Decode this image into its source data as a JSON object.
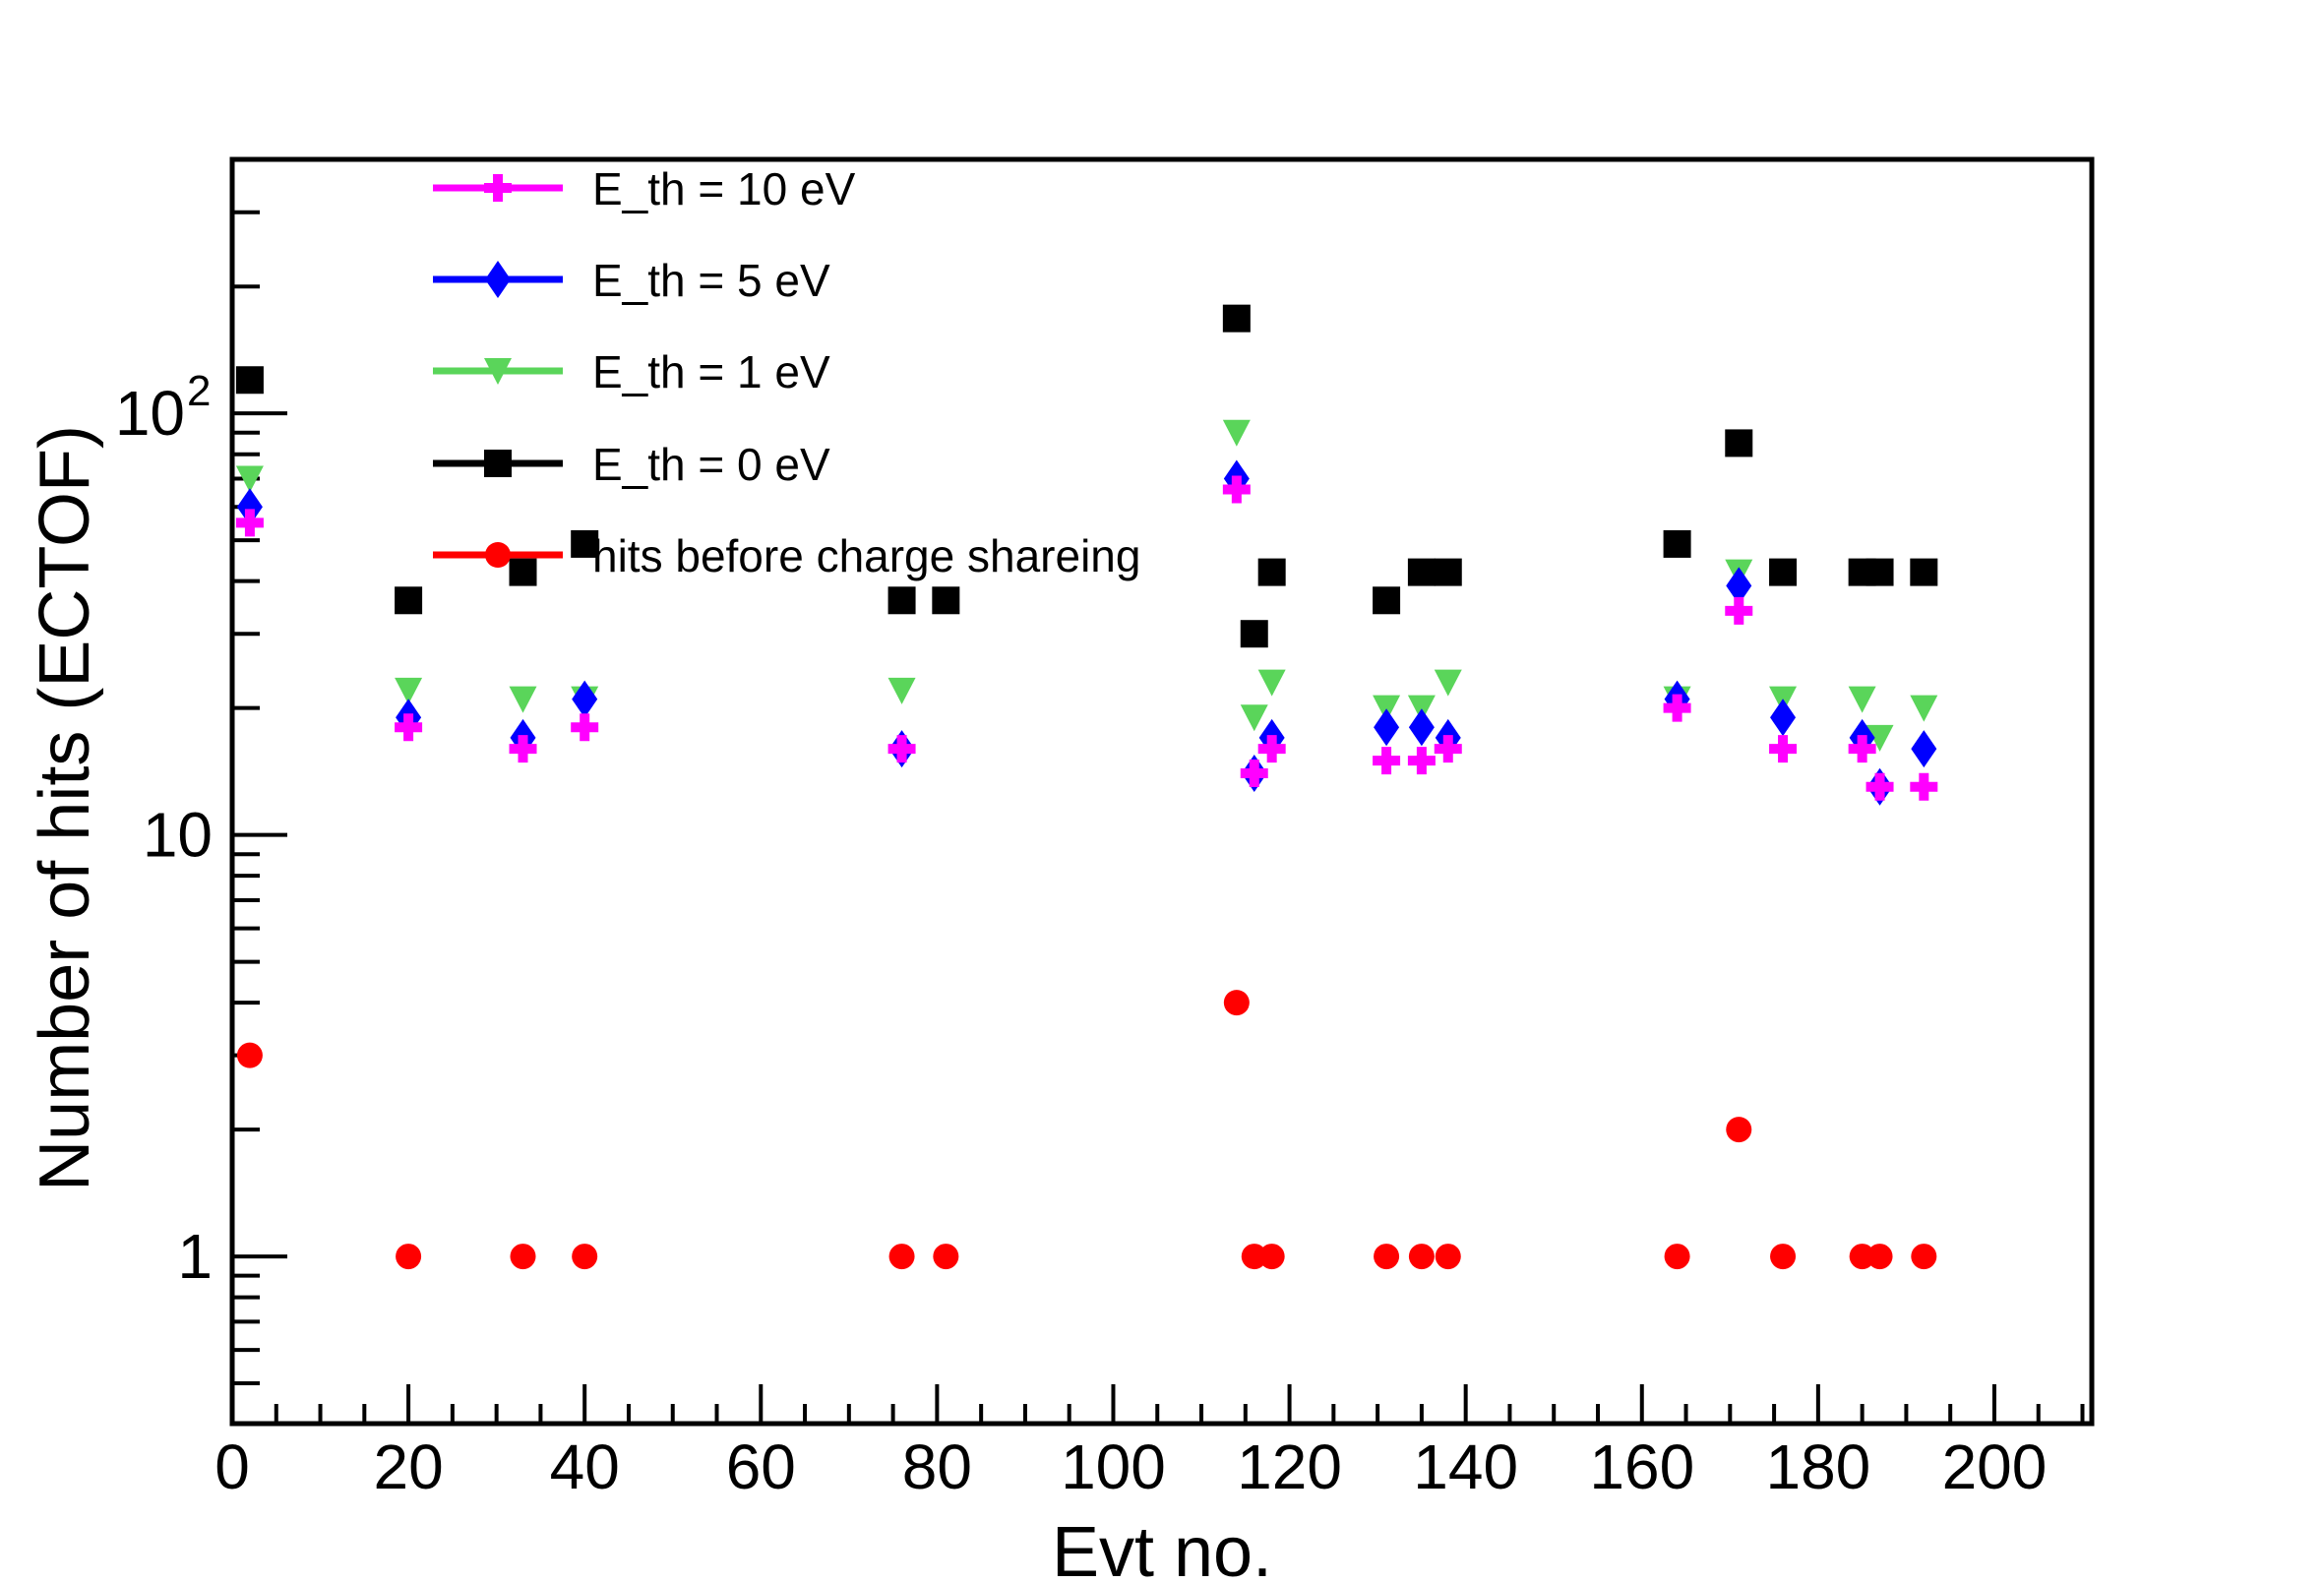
{
  "chart_data": {
    "type": "scatter",
    "title": "",
    "xlabel": "Evt no.",
    "ylabel": "Number of hits (ECTOF)",
    "xlim": [
      0,
      211
    ],
    "ylim": [
      0.4,
      400
    ],
    "yscale": "log",
    "grid": false,
    "legend_position": "top-left",
    "x_ticks": [
      {
        "value": 0,
        "label": "0"
      },
      {
        "value": 20,
        "label": "20"
      },
      {
        "value": 40,
        "label": "40"
      },
      {
        "value": 60,
        "label": "60"
      },
      {
        "value": 80,
        "label": "80"
      },
      {
        "value": 100,
        "label": "100"
      },
      {
        "value": 120,
        "label": "120"
      },
      {
        "value": 140,
        "label": "140"
      },
      {
        "value": 160,
        "label": "160"
      },
      {
        "value": 180,
        "label": "180"
      },
      {
        "value": 200,
        "label": "200"
      }
    ],
    "y_ticks": [
      {
        "value": 1,
        "label": "1",
        "exp": ""
      },
      {
        "value": 10,
        "label": "10",
        "exp": ""
      },
      {
        "value": 100,
        "label": "10",
        "exp": "2"
      }
    ],
    "series": [
      {
        "name": "E_th = 10 eV",
        "color": "#ff00ff",
        "marker": "cross",
        "points": [
          [
            2,
            55
          ],
          [
            20,
            18
          ],
          [
            33,
            16
          ],
          [
            40,
            18
          ],
          [
            76,
            16
          ],
          [
            114,
            66
          ],
          [
            116,
            14
          ],
          [
            118,
            16
          ],
          [
            131,
            15
          ],
          [
            135,
            15
          ],
          [
            138,
            16
          ],
          [
            164,
            20
          ],
          [
            171,
            34
          ],
          [
            176,
            16
          ],
          [
            185,
            16
          ],
          [
            187,
            13
          ],
          [
            192,
            13
          ]
        ]
      },
      {
        "name": "E_th = 5 eV",
        "color": "#0000ff",
        "marker": "diamond",
        "points": [
          [
            2,
            60
          ],
          [
            20,
            19
          ],
          [
            33,
            17
          ],
          [
            40,
            21
          ],
          [
            76,
            16
          ],
          [
            114,
            70
          ],
          [
            116,
            14
          ],
          [
            118,
            17
          ],
          [
            131,
            18
          ],
          [
            135,
            18
          ],
          [
            138,
            17
          ],
          [
            164,
            21
          ],
          [
            171,
            39
          ],
          [
            176,
            19
          ],
          [
            185,
            17
          ],
          [
            187,
            13
          ],
          [
            192,
            16
          ]
        ]
      },
      {
        "name": "E_th = 1 eV",
        "color": "#5ad55a",
        "marker": "triangle-down",
        "points": [
          [
            2,
            70
          ],
          [
            20,
            22
          ],
          [
            33,
            21
          ],
          [
            40,
            21
          ],
          [
            76,
            22
          ],
          [
            114,
            90
          ],
          [
            116,
            19
          ],
          [
            118,
            23
          ],
          [
            131,
            20
          ],
          [
            135,
            20
          ],
          [
            138,
            23
          ],
          [
            164,
            21
          ],
          [
            171,
            42
          ],
          [
            176,
            21
          ],
          [
            185,
            21
          ],
          [
            187,
            17
          ],
          [
            192,
            20
          ]
        ]
      },
      {
        "name": "E_th = 0 eV",
        "color": "#000000",
        "marker": "square",
        "points": [
          [
            2,
            120
          ],
          [
            20,
            36
          ],
          [
            33,
            42
          ],
          [
            40,
            49
          ],
          [
            76,
            36
          ],
          [
            81,
            36
          ],
          [
            114,
            168
          ],
          [
            116,
            30
          ],
          [
            118,
            42
          ],
          [
            131,
            36
          ],
          [
            135,
            42
          ],
          [
            138,
            42
          ],
          [
            164,
            49
          ],
          [
            171,
            85
          ],
          [
            176,
            42
          ],
          [
            185,
            42
          ],
          [
            187,
            42
          ],
          [
            192,
            42
          ]
        ]
      },
      {
        "name": "hits before charge shareing",
        "color": "#ff0000",
        "marker": "circle",
        "points": [
          [
            2,
            3
          ],
          [
            20,
            1
          ],
          [
            33,
            1
          ],
          [
            40,
            1
          ],
          [
            76,
            1
          ],
          [
            81,
            1
          ],
          [
            114,
            4
          ],
          [
            116,
            1
          ],
          [
            118,
            1
          ],
          [
            131,
            1
          ],
          [
            135,
            1
          ],
          [
            138,
            1
          ],
          [
            164,
            1
          ],
          [
            171,
            2
          ],
          [
            176,
            1
          ],
          [
            185,
            1
          ],
          [
            187,
            1
          ],
          [
            192,
            1
          ]
        ]
      }
    ]
  }
}
